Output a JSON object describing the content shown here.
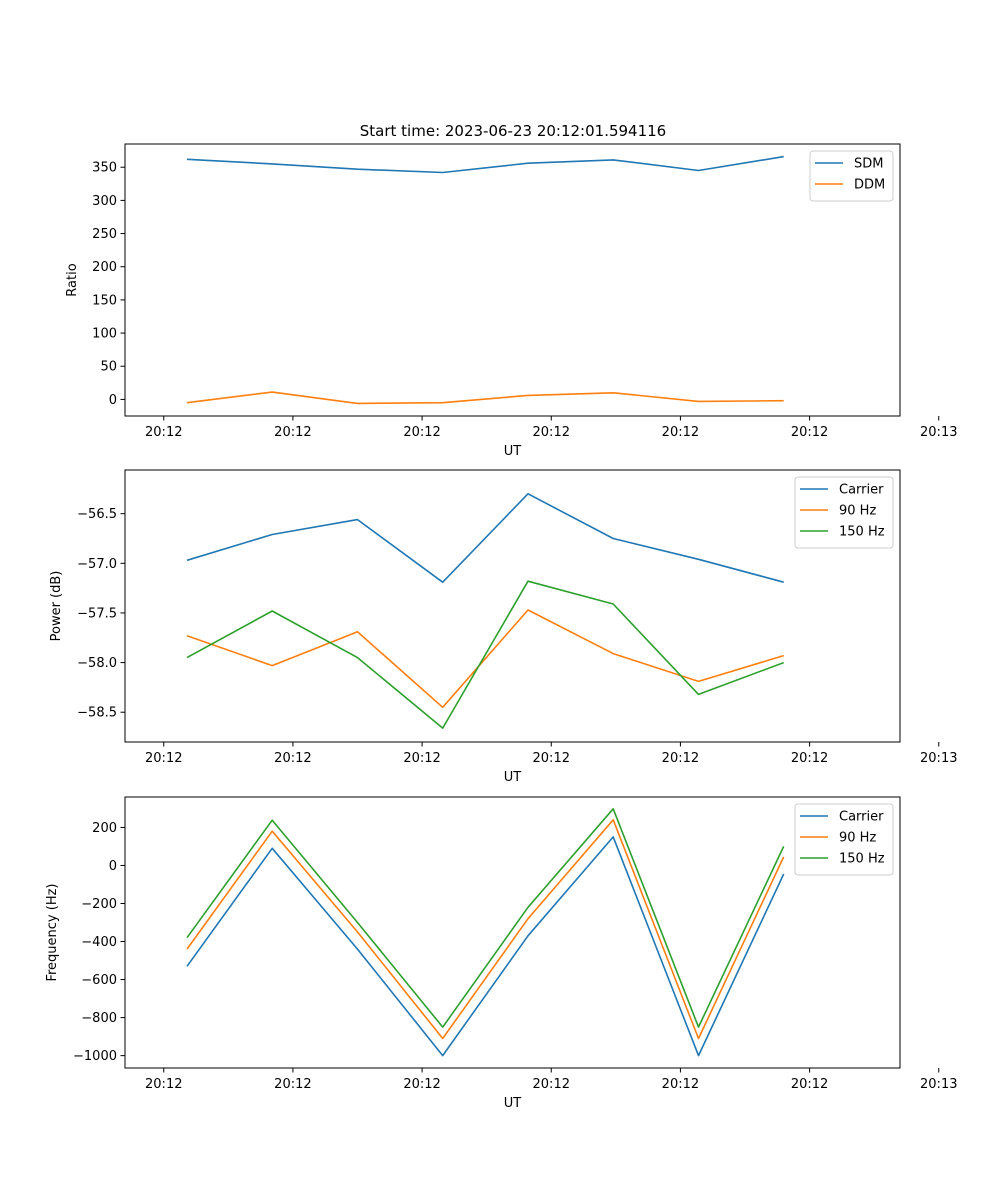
{
  "figure": {
    "title": "Start time: 2023-06-23 20:12:01.594116"
  },
  "chart_data": [
    {
      "type": "line",
      "title": "",
      "xlabel": "UT",
      "ylabel": "Ratio",
      "x": [
        "20:12:01.59",
        "20:12:01.92",
        "20:12:02.25",
        "20:12:02.58",
        "20:12:02.91",
        "20:12:03.24",
        "20:12:03.57",
        "20:12:03.90"
      ],
      "xlim": [
        "20:12:01.35",
        "20:12:04.35"
      ],
      "xticks": [
        "20:12",
        "20:12",
        "20:12",
        "20:12",
        "20:12",
        "20:12",
        "20:13"
      ],
      "yticks": [
        "0",
        "50",
        "100",
        "150",
        "200",
        "250",
        "300",
        "350"
      ],
      "ylim": [
        -25,
        385
      ],
      "grid": false,
      "legend_position": "upper right",
      "series": [
        {
          "name": "SDM",
          "color": "#1f77b4",
          "values": [
            362,
            355,
            347,
            342,
            356,
            361,
            345,
            366
          ]
        },
        {
          "name": "DDM",
          "color": "#ff7f0e",
          "values": [
            -5,
            11,
            -6,
            -5,
            6,
            10,
            -3,
            -2
          ]
        }
      ]
    },
    {
      "type": "line",
      "title": "",
      "xlabel": "UT",
      "ylabel": "Power (dB)",
      "x": [
        "20:12:01.59",
        "20:12:01.92",
        "20:12:02.25",
        "20:12:02.58",
        "20:12:02.91",
        "20:12:03.24",
        "20:12:03.57",
        "20:12:03.90"
      ],
      "xlim": [
        "20:12:01.35",
        "20:12:04.35"
      ],
      "xticks": [
        "20:12",
        "20:12",
        "20:12",
        "20:12",
        "20:12",
        "20:12",
        "20:13"
      ],
      "yticks": [
        "−58.5",
        "−58.0",
        "−57.5",
        "−57.0",
        "−56.5"
      ],
      "ylim": [
        -58.8,
        -56.06
      ],
      "grid": false,
      "legend_position": "upper right",
      "series": [
        {
          "name": "Carrier",
          "color": "#1f77b4",
          "values": [
            -56.97,
            -56.71,
            -56.56,
            -57.19,
            -56.3,
            -56.75,
            -56.96,
            -57.19
          ]
        },
        {
          "name": "90 Hz",
          "color": "#ff7f0e",
          "values": [
            -57.73,
            -58.03,
            -57.69,
            -58.45,
            -57.47,
            -57.91,
            -58.19,
            -57.93
          ]
        },
        {
          "name": "150 Hz",
          "color": "#2ca02c",
          "values": [
            -57.95,
            -57.48,
            -57.95,
            -58.66,
            -57.18,
            -57.41,
            -58.32,
            -58.0
          ]
        }
      ]
    },
    {
      "type": "line",
      "title": "",
      "xlabel": "UT",
      "ylabel": "Frequency (Hz)",
      "x": [
        "20:12:01.59",
        "20:12:01.92",
        "20:12:02.25",
        "20:12:02.58",
        "20:12:02.91",
        "20:12:03.24",
        "20:12:03.57",
        "20:12:03.90"
      ],
      "xlim": [
        "20:12:01.35",
        "20:12:04.35"
      ],
      "xticks": [
        "20:12",
        "20:12",
        "20:12",
        "20:12",
        "20:12",
        "20:12",
        "20:13"
      ],
      "yticks": [
        "−1000",
        "−800",
        "−600",
        "−400",
        "−200",
        "0",
        "200"
      ],
      "ylim": [
        -1065,
        360
      ],
      "grid": false,
      "legend_position": "upper right",
      "series": [
        {
          "name": "Carrier",
          "color": "#1f77b4",
          "values": [
            -530,
            90,
            -440,
            -1000,
            -370,
            150,
            -1000,
            -45
          ]
        },
        {
          "name": "90 Hz",
          "color": "#ff7f0e",
          "values": [
            -440,
            180,
            -350,
            -910,
            -280,
            240,
            -910,
            45
          ]
        },
        {
          "name": "150 Hz",
          "color": "#2ca02c",
          "values": [
            -380,
            238,
            -300,
            -850,
            -220,
            298,
            -850,
            100
          ]
        }
      ]
    }
  ]
}
